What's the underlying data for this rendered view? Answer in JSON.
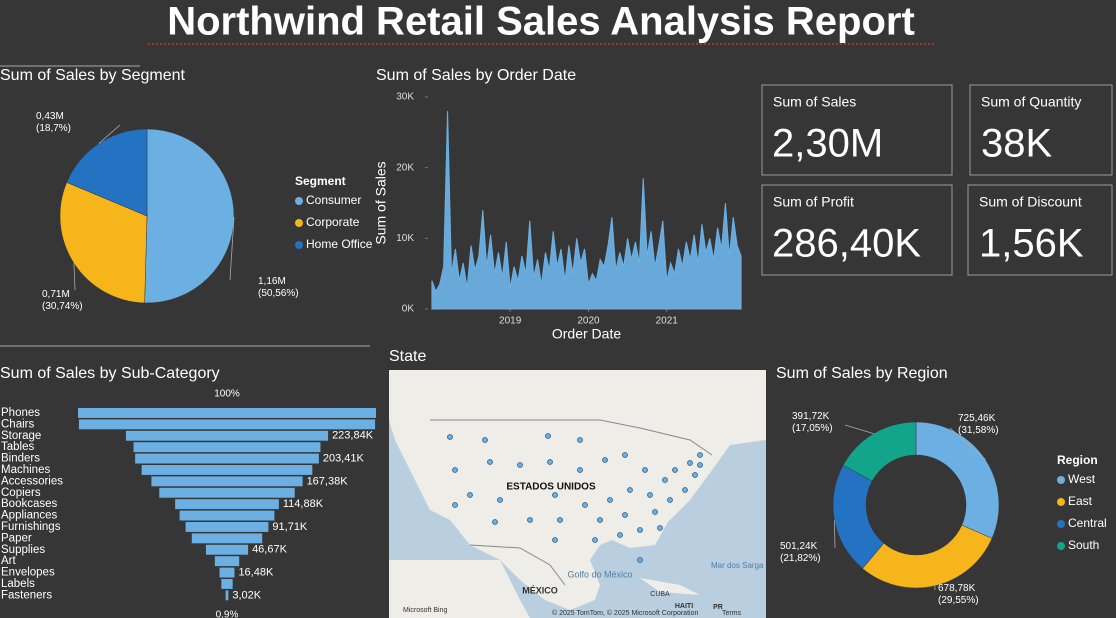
{
  "title": "Northwind Retail Sales Analysis Report",
  "chart_data": [
    {
      "type": "pie",
      "title": "Sum of Sales by Segment",
      "legend_title": "Segment",
      "categories": [
        "Consumer",
        "Corporate",
        "Home Office"
      ],
      "values": [
        1160000,
        710000,
        430000
      ],
      "value_labels": [
        "1,16M (50,56%)",
        "0,71M (30,74%)",
        "0,43M (18,7%)"
      ],
      "colors": [
        "#6cb0e3",
        "#f6b51b",
        "#2473c2"
      ]
    },
    {
      "type": "line",
      "title": "Sum of Sales by Order Date",
      "x_label": "Order Date",
      "y_label": "Sum of Sales",
      "x": [
        2018.0,
        2018.05,
        2018.1,
        2018.15,
        2018.2,
        2018.25,
        2018.3,
        2018.35,
        2018.4,
        2018.45,
        2018.5,
        2018.55,
        2018.6,
        2018.65,
        2018.7,
        2018.75,
        2018.8,
        2018.85,
        2018.9,
        2018.95,
        2019.0,
        2019.05,
        2019.1,
        2019.15,
        2019.2,
        2019.25,
        2019.3,
        2019.35,
        2019.4,
        2019.45,
        2019.5,
        2019.55,
        2019.6,
        2019.65,
        2019.7,
        2019.75,
        2019.8,
        2019.85,
        2019.9,
        2019.95,
        2020.0,
        2020.05,
        2020.1,
        2020.15,
        2020.2,
        2020.25,
        2020.3,
        2020.35,
        2020.4,
        2020.45,
        2020.5,
        2020.55,
        2020.6,
        2020.65,
        2020.7,
        2020.75,
        2020.8,
        2020.85,
        2020.9,
        2020.95,
        2021.0,
        2021.05,
        2021.1,
        2021.15,
        2021.2,
        2021.25,
        2021.3,
        2021.35,
        2021.4,
        2021.45,
        2021.5,
        2021.55,
        2021.6,
        2021.65,
        2021.7,
        2021.75,
        2021.8,
        2021.85,
        2021.9,
        2021.95
      ],
      "values": [
        4000,
        2500,
        3500,
        6000,
        28000,
        5000,
        8500,
        4000,
        6500,
        3000,
        9000,
        5500,
        7500,
        14000,
        6000,
        10500,
        5000,
        8000,
        4500,
        9500,
        3000,
        6000,
        4000,
        7500,
        5000,
        12500,
        4500,
        7000,
        3500,
        8000,
        5500,
        11000,
        6000,
        8500,
        4000,
        9000,
        5000,
        10000,
        6500,
        8500,
        3500,
        5000,
        4000,
        7000,
        6000,
        9000,
        13000,
        5500,
        8000,
        6000,
        10000,
        7000,
        9500,
        6500,
        18500,
        7500,
        11000,
        6000,
        9000,
        12500,
        4000,
        6500,
        5000,
        8500,
        6000,
        9500,
        7000,
        10500,
        6500,
        12000,
        8000,
        10000,
        7000,
        11500,
        8500,
        15000,
        7500,
        13000,
        9000,
        7500
      ],
      "color": "#6cb0e3",
      "xlim": [
        2017.95,
        2022.0
      ],
      "xticks": [
        2019,
        2020,
        2021
      ],
      "ylim": [
        0,
        30000
      ],
      "yticks": [
        {
          "value": 0,
          "label": "0K"
        },
        {
          "value": 10000,
          "label": "10K"
        },
        {
          "value": 20000,
          "label": "20K"
        },
        {
          "value": 30000,
          "label": "30K"
        }
      ]
    },
    {
      "type": "funnel",
      "title": "Sum of Sales by Sub-Category",
      "top_label": "100%",
      "bottom_label": "0,9%",
      "categories": [
        "Phones",
        "Chairs",
        "Storage",
        "Tables",
        "Binders",
        "Machines",
        "Accessories",
        "Copiers",
        "Bookcases",
        "Appliances",
        "Furnishings",
        "Paper",
        "Supplies",
        "Art",
        "Envelopes",
        "Labels",
        "Fasteners"
      ],
      "values": [
        330000,
        328000,
        223840,
        207000,
        203410,
        189000,
        167380,
        150000,
        114880,
        105000,
        91710,
        78000,
        46670,
        27000,
        16480,
        12500,
        3020
      ],
      "value_labels": [
        null,
        null,
        "223,84K",
        null,
        "203,41K",
        null,
        "167,38K",
        null,
        "114,88K",
        null,
        "91,71K",
        null,
        "46,67K",
        null,
        "16,48K",
        null,
        "3,02K"
      ],
      "color": "#6cb0e3"
    },
    {
      "type": "donut",
      "title": "Sum of Sales by Region",
      "legend_title": "Region",
      "categories": [
        "West",
        "East",
        "Central",
        "South"
      ],
      "values": [
        725460,
        678780,
        501240,
        391720
      ],
      "value_labels": [
        "725,46K (31,58%)",
        "678,78K (29,55%)",
        "501,24K (21,82%)",
        "391,72K (17,05%)"
      ],
      "colors": [
        "#6cb0e3",
        "#f6b51b",
        "#2473c2",
        "#12a58c"
      ]
    }
  ],
  "cards": [
    {
      "label": "Sum of Sales",
      "value": "2,30M"
    },
    {
      "label": "Sum of Quantity",
      "value": "38K"
    },
    {
      "label": "Sum of Profit",
      "value": "286,40K"
    },
    {
      "label": "Sum of Discount",
      "value": "1,56K"
    }
  ],
  "map": {
    "title": "State",
    "country": "ESTADOS UNIDOS",
    "gulf": "Golfo do México",
    "mexico": "MÉXICO",
    "cuba": "CUBA",
    "haiti": "HAITI",
    "pr": "PR",
    "sea": "Mar dos Sarga",
    "brand": "Microsoft Bing",
    "attribution": "© 2025 TomTom, © 2025 Microsoft Corporation",
    "terms": "Terms"
  }
}
